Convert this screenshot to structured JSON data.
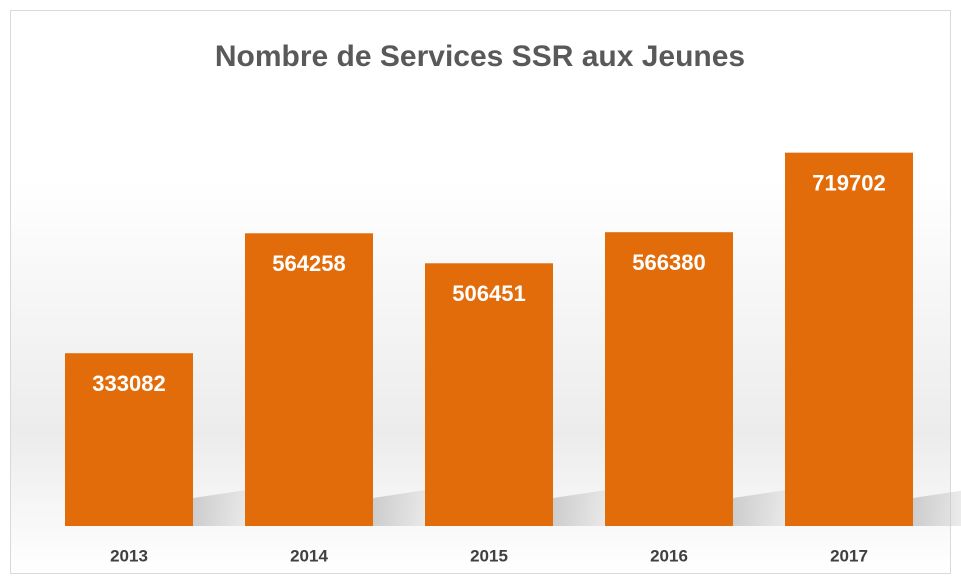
{
  "chart_data": {
    "type": "bar",
    "title": "Nombre de Services SSR aux Jeunes",
    "categories": [
      "2013",
      "2014",
      "2015",
      "2016",
      "2017"
    ],
    "values": [
      333082,
      564258,
      506451,
      566380,
      719702
    ],
    "color": "#e36c0a",
    "ylim": [
      0,
      800000
    ]
  }
}
